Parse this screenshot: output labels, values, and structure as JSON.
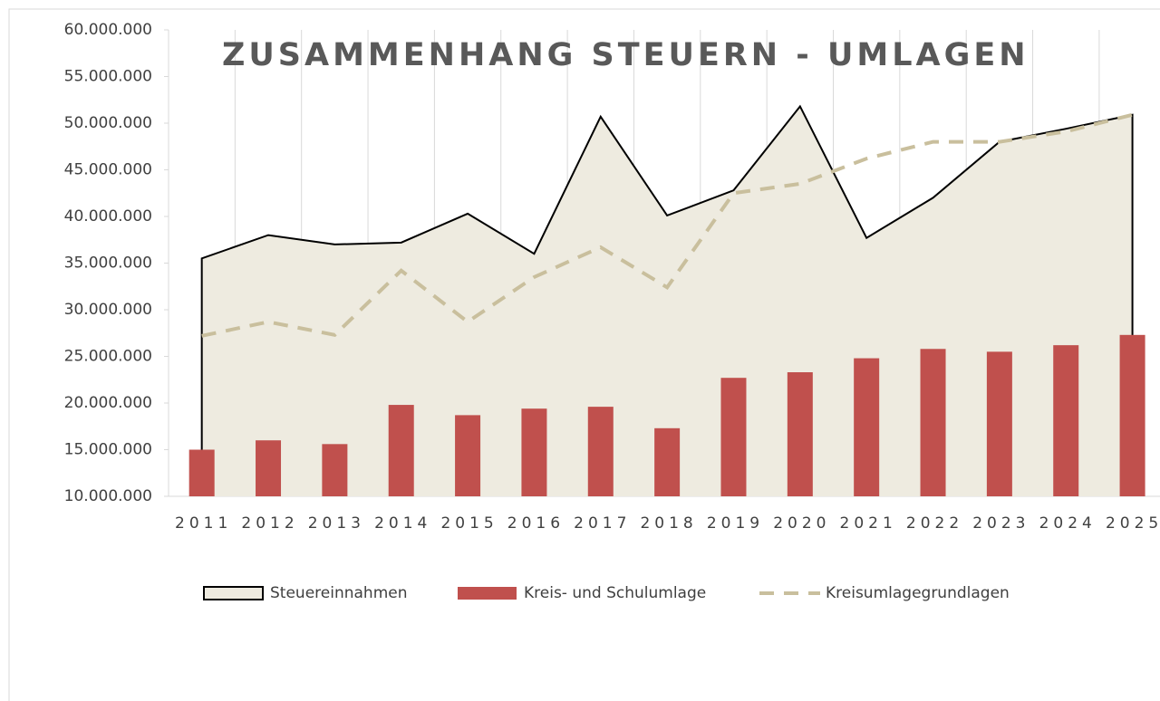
{
  "chart_data": {
    "type": "combo",
    "title": "ZUSAMMENHANG STEUERN - UMLAGEN",
    "categories": [
      "2011",
      "2012",
      "2013",
      "2014",
      "2015",
      "2016",
      "2017",
      "2018",
      "2019",
      "2020",
      "2021",
      "2022",
      "2023",
      "2024",
      "2025"
    ],
    "series": [
      {
        "name": "Steuereinnahmen",
        "type": "area",
        "color": "#eeebe0",
        "line_color": "#000000",
        "values": [
          35500000,
          38000000,
          37000000,
          37200000,
          40300000,
          36000000,
          50700000,
          40100000,
          42800000,
          51800000,
          37700000,
          42000000,
          48000000,
          49400000,
          50900000
        ]
      },
      {
        "name": "Kreis- und Schulumlage",
        "type": "bar",
        "color": "#c0504d",
        "values": [
          15000000,
          16000000,
          15600000,
          19800000,
          18700000,
          19400000,
          19600000,
          17300000,
          22700000,
          23300000,
          24800000,
          25800000,
          25500000,
          26200000,
          27300000
        ]
      },
      {
        "name": "Kreisumlagegrundlagen",
        "type": "line",
        "dashed": true,
        "color": "#c9bf9d",
        "values": [
          27200000,
          28700000,
          27300000,
          34200000,
          28700000,
          33500000,
          36700000,
          32400000,
          42500000,
          43500000,
          46200000,
          48000000,
          48000000,
          49100000,
          50900000
        ]
      }
    ],
    "ylim": [
      10000000,
      60000000
    ],
    "yticks": [
      {
        "value": 10000000,
        "label": "10.000.000"
      },
      {
        "value": 15000000,
        "label": "15.000.000"
      },
      {
        "value": 20000000,
        "label": "20.000.000"
      },
      {
        "value": 25000000,
        "label": "25.000.000"
      },
      {
        "value": 30000000,
        "label": "30.000.000"
      },
      {
        "value": 35000000,
        "label": "35.000.000"
      },
      {
        "value": 40000000,
        "label": "40.000.000"
      },
      {
        "value": 45000000,
        "label": "45.000.000"
      },
      {
        "value": 50000000,
        "label": "50.000.000"
      },
      {
        "value": 55000000,
        "label": "55.000.000"
      },
      {
        "value": 60000000,
        "label": "60.000.000"
      }
    ],
    "grid": "x",
    "legend": "bottom"
  }
}
